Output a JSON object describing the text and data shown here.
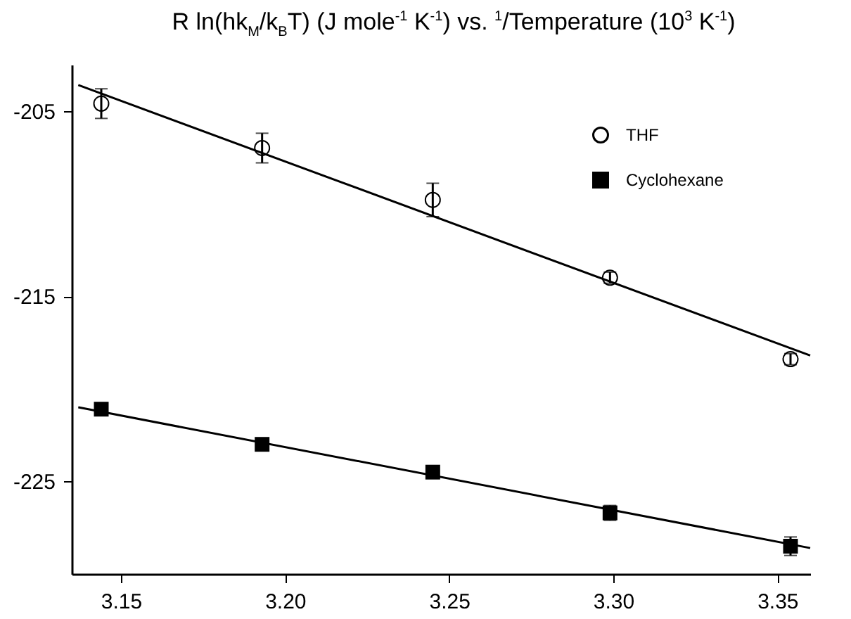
{
  "chart_data": {
    "type": "scatter",
    "title": "R ln(hk$_{M}$/k$_{B}$T)  (J mole$^{-1}$ K$^{-1}$)  vs.  $^{1}$/Temperature (10$^{3}$ K$^{-1}$)",
    "series": [
      {
        "name": "THF",
        "color": "#000000",
        "marker": "circle",
        "x": [
          3.144,
          3.193,
          3.245,
          3.299,
          3.354
        ],
        "values": [
          -204.6,
          -207.0,
          -209.8,
          -214.0,
          -218.4
        ],
        "errors": [
          0.8,
          0.8,
          0.9,
          0.3,
          0.3
        ]
      },
      {
        "name": "Cyclohexane",
        "color": "#000000",
        "marker": "square",
        "x": [
          3.144,
          3.193,
          3.245,
          3.299,
          3.354
        ],
        "values": [
          -221.1,
          -223.0,
          -224.5,
          -226.7,
          -228.5
        ],
        "errors": [
          0.2,
          0.2,
          0.2,
          0.4,
          0.5
        ]
      },
      {
        "type": "line",
        "color": "#000000",
        "x": [
          3.137,
          3.36
        ],
        "values": [
          -203.6,
          -218.2
        ]
      },
      {
        "type": "line",
        "color": "#000000",
        "x": [
          3.137,
          3.36
        ],
        "values": [
          -221.0,
          -228.6
        ]
      }
    ],
    "xlim": [
      3.135,
      3.36
    ],
    "xticks": [
      {
        "value": 3.15,
        "label": "3.15"
      },
      {
        "value": 3.2,
        "label": "3.20"
      },
      {
        "value": 3.25,
        "label": "3.25"
      },
      {
        "value": 3.3,
        "label": "3.30"
      },
      {
        "value": 3.35,
        "label": "3.35"
      }
    ],
    "ylim": [
      -230,
      -202.5
    ],
    "yticks": [
      -205,
      -215,
      -225
    ],
    "grid": false,
    "legend": "top right"
  }
}
